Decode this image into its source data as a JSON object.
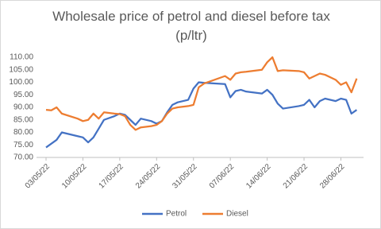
{
  "chart_data": {
    "type": "line",
    "title": "Wholesale price of petrol and diesel before tax (p/ltr)",
    "x": [
      "03/05/22",
      "04/05/22",
      "05/05/22",
      "06/05/22",
      "09/05/22",
      "10/05/22",
      "11/05/22",
      "12/05/22",
      "13/05/22",
      "14/05/22",
      "16/05/22",
      "17/05/22",
      "18/05/22",
      "19/05/22",
      "20/05/22",
      "21/05/22",
      "23/05/22",
      "24/05/22",
      "25/05/22",
      "26/05/22",
      "27/05/22",
      "28/05/22",
      "30/05/22",
      "31/05/22",
      "01/06/22",
      "02/06/22",
      "06/06/22",
      "07/06/22",
      "08/06/22",
      "09/06/22",
      "10/06/22",
      "13/06/22",
      "14/06/22",
      "15/06/22",
      "16/06/22",
      "17/06/22",
      "20/06/22",
      "21/06/22",
      "22/06/22",
      "23/06/22",
      "24/06/22",
      "25/06/22",
      "27/06/22",
      "28/06/22",
      "29/06/22",
      "30/06/22",
      "01/07/22"
    ],
    "series": [
      {
        "name": "Petrol",
        "color": "#4472c4",
        "values": [
          74,
          75.5,
          77,
          80,
          78.5,
          78,
          76,
          78,
          81.5,
          85,
          86.5,
          87.5,
          87,
          85,
          83,
          85.5,
          84.5,
          83.5,
          84.5,
          88,
          91,
          92,
          93,
          97.5,
          100,
          99.8,
          99.3,
          94,
          96.5,
          97,
          96.3,
          95.5,
          97,
          95,
          91.5,
          89.5,
          90.5,
          91,
          93,
          90,
          92.5,
          93.5,
          92.5,
          93.5,
          93,
          87.5,
          89
        ]
      },
      {
        "name": "Diesel",
        "color": "#ed7d31",
        "values": [
          89,
          88.8,
          90,
          87.5,
          85.5,
          84.5,
          85,
          87.5,
          85.5,
          88,
          87.5,
          87.3,
          86.5,
          83,
          81,
          82,
          82.5,
          83,
          84.5,
          87.5,
          89.5,
          90,
          90.5,
          91,
          98,
          99.5,
          102.5,
          101,
          103.5,
          104,
          104.2,
          105,
          108,
          110,
          104.5,
          104.8,
          104.5,
          104,
          101.5,
          102.5,
          103.5,
          103,
          101,
          99,
          100,
          96,
          101.5
        ]
      }
    ],
    "xlim": [
      "03/05/22",
      "02/07/22"
    ],
    "xticks": [
      "03/05/22",
      "10/05/22",
      "17/05/22",
      "24/05/22",
      "31/05/22",
      "07/06/22",
      "14/06/22",
      "21/06/22",
      "28/06/22"
    ],
    "ylim": [
      70,
      110
    ],
    "yticks": [
      {
        "value": 70,
        "label": "70.00"
      },
      {
        "value": 75,
        "label": "75.00"
      },
      {
        "value": 80,
        "label": "80.00"
      },
      {
        "value": 85,
        "label": "85.00"
      },
      {
        "value": 90,
        "label": "90.00"
      },
      {
        "value": 95,
        "label": "95.00"
      },
      {
        "value": 100,
        "label": "100.00"
      },
      {
        "value": 105,
        "label": "105.00"
      },
      {
        "value": 110,
        "label": "110.00"
      }
    ],
    "grid": false,
    "legend": "bottom"
  }
}
